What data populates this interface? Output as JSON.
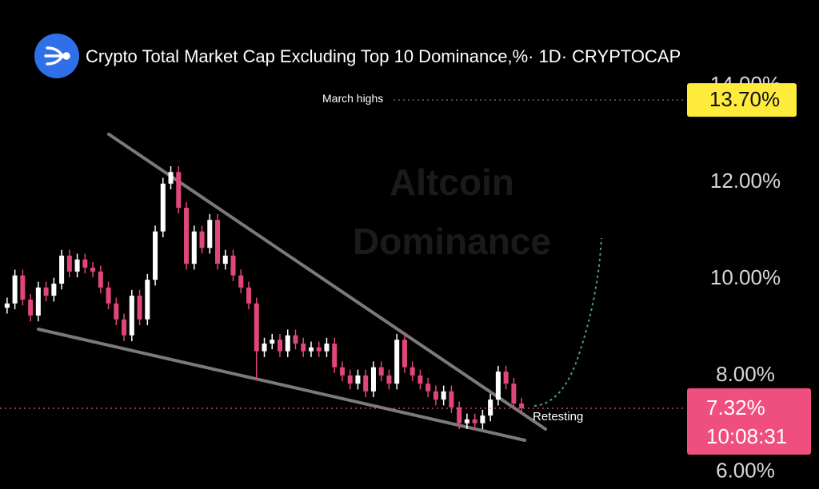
{
  "chart_data": {
    "type": "candlestick",
    "title": "Crypto Total Market Cap Excluding Top 10 Dominance,%· 1D· CRYPTOCAP",
    "watermark": [
      "Altcoin",
      "Dominance"
    ],
    "up_color": "#ffffff",
    "down_color": "#e0457b",
    "ylim": [
      5.65,
      15.77
    ],
    "yticks": [
      {
        "value": 6,
        "label": "6.00%"
      },
      {
        "value": 8,
        "label": "8.00%"
      },
      {
        "value": 10,
        "label": "10.00%"
      },
      {
        "value": 12,
        "label": "12.00%"
      },
      {
        "value": 14,
        "label": "14.00%"
      }
    ],
    "open": [
      9.4,
      9.49,
      10.07,
      9.57,
      9.24,
      9.82,
      9.65,
      9.9,
      10.48,
      10.15,
      10.4,
      10.23,
      10.15,
      9.82,
      9.49,
      9.16,
      8.83,
      9.65,
      9.16,
      9.98,
      10.98,
      11.97,
      12.21,
      11.47,
      10.31,
      10.98,
      10.64,
      11.22,
      10.31,
      10.48,
      10.07,
      9.82,
      9.49,
      8.5,
      8.66,
      8.74,
      8.5,
      8.83,
      8.66,
      8.5,
      8.58,
      8.5,
      8.66,
      8.17,
      8.0,
      7.83,
      8.0,
      7.67,
      8.17,
      8.0,
      7.83,
      8.74,
      8.17,
      8.0,
      7.83,
      7.67,
      7.5,
      7.67,
      7.34,
      7.01,
      7.09,
      7.01,
      7.17,
      7.5,
      8.08,
      7.83,
      7.42
    ],
    "high": [
      9.61,
      10.19,
      10.19,
      9.69,
      9.94,
      9.94,
      10.02,
      10.6,
      10.6,
      10.52,
      10.52,
      10.35,
      10.27,
      9.94,
      9.61,
      9.28,
      9.77,
      9.77,
      10.1,
      11.1,
      12.09,
      12.33,
      12.33,
      11.59,
      11.1,
      11.1,
      11.34,
      11.34,
      10.6,
      10.6,
      10.19,
      9.94,
      9.61,
      8.78,
      8.86,
      8.86,
      8.95,
      8.95,
      8.78,
      8.7,
      8.7,
      8.78,
      8.78,
      8.29,
      8.12,
      8.12,
      8.12,
      8.29,
      8.29,
      8.12,
      8.86,
      8.86,
      8.29,
      8.12,
      7.95,
      7.79,
      7.79,
      7.79,
      7.46,
      7.21,
      7.21,
      7.29,
      7.62,
      8.2,
      8.2,
      7.95,
      7.54
    ],
    "low": [
      9.28,
      9.37,
      9.45,
      9.12,
      9.12,
      9.53,
      9.53,
      9.78,
      10.03,
      10.03,
      10.11,
      10.03,
      9.7,
      9.37,
      9.04,
      8.71,
      8.71,
      9.04,
      9.04,
      9.86,
      10.86,
      11.85,
      11.35,
      10.19,
      10.19,
      10.52,
      10.52,
      10.19,
      10.19,
      9.95,
      9.7,
      9.37,
      7.9,
      8.38,
      8.54,
      8.38,
      8.38,
      8.54,
      8.38,
      8.38,
      8.38,
      8.38,
      8.05,
      7.88,
      7.71,
      7.71,
      7.55,
      7.55,
      7.88,
      7.71,
      7.71,
      8.05,
      7.88,
      7.71,
      7.55,
      7.38,
      7.38,
      7.22,
      6.89,
      6.89,
      6.89,
      6.89,
      7.05,
      7.38,
      7.71,
      7.3,
      7.2
    ],
    "close": [
      9.49,
      10.07,
      9.57,
      9.24,
      9.82,
      9.65,
      9.9,
      10.48,
      10.15,
      10.4,
      10.23,
      10.15,
      9.82,
      9.49,
      9.16,
      8.83,
      9.65,
      9.16,
      9.98,
      10.98,
      11.97,
      12.21,
      11.47,
      10.31,
      10.98,
      10.64,
      11.22,
      10.31,
      10.48,
      10.07,
      9.82,
      9.49,
      8.5,
      8.66,
      8.74,
      8.5,
      8.83,
      8.66,
      8.5,
      8.58,
      8.5,
      8.66,
      8.17,
      8.0,
      7.83,
      8.0,
      7.67,
      8.17,
      8.0,
      7.83,
      8.74,
      8.17,
      8.0,
      7.83,
      7.67,
      7.5,
      7.67,
      7.34,
      7.01,
      7.09,
      7.01,
      7.17,
      7.5,
      8.08,
      7.83,
      7.42,
      7.32
    ],
    "march_highs": {
      "label": "March highs",
      "value": 13.7,
      "value_label": "13.70%",
      "color": "#ffeb3b"
    },
    "current_price": {
      "value": 7.32,
      "value_label": "7.32%",
      "countdown": "10:08:31",
      "color": "#ef4f7f"
    },
    "annotation": "Retesting"
  }
}
